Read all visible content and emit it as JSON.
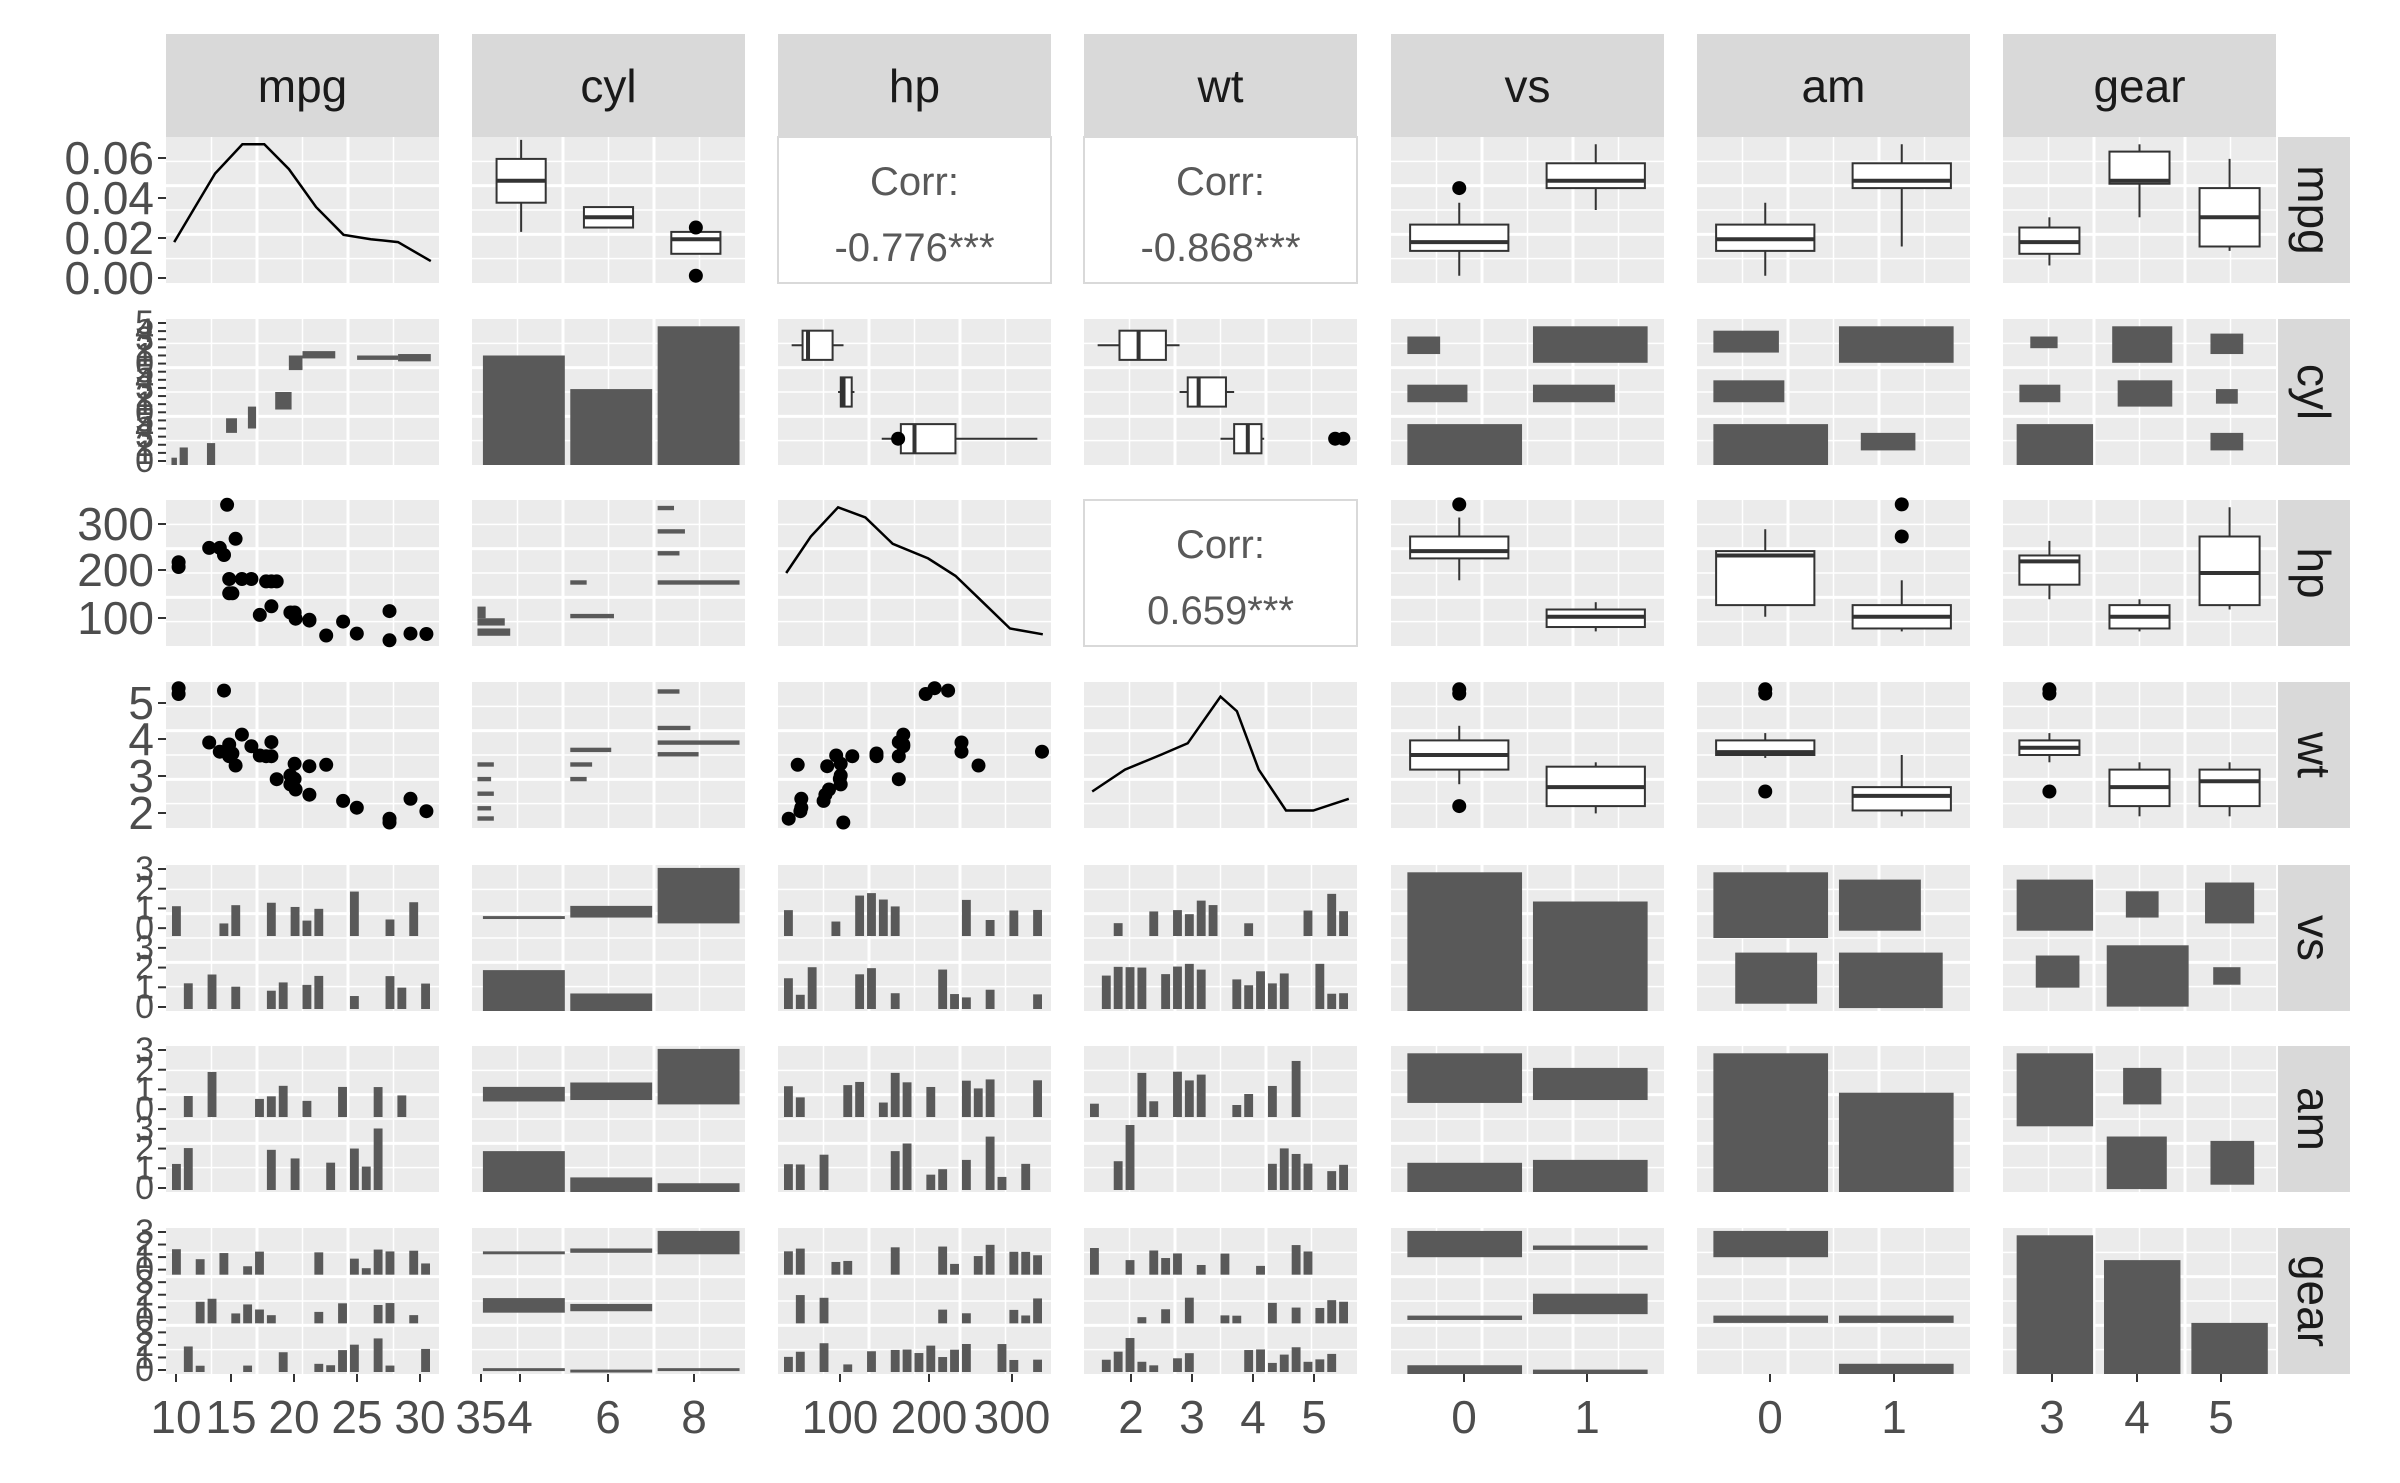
{
  "chart_data": {
    "type": "scatterplot-matrix",
    "variables": [
      "mpg",
      "cyl",
      "hp",
      "wt",
      "vs",
      "am",
      "gear"
    ],
    "strip_labels": {
      "top": [
        "mpg",
        "cyl",
        "hp",
        "wt",
        "vs",
        "am",
        "gear"
      ],
      "right": [
        "mpg",
        "cyl",
        "hp",
        "wt",
        "vs",
        "am",
        "gear"
      ]
    },
    "axis_ticks": {
      "x": [
        [
          "10",
          "15",
          "20",
          "25",
          "30",
          "35"
        ],
        [
          "4",
          "6",
          "8"
        ],
        [
          "100",
          "200",
          "300"
        ],
        [
          "2",
          "3",
          "4",
          "5"
        ],
        [
          "0",
          "1"
        ],
        [
          "0",
          "1"
        ],
        [
          "3",
          "4",
          "5"
        ]
      ],
      "y": [
        [
          "0.06",
          "0.04",
          "0.02",
          "0.00"
        ],
        [
          "5",
          "4",
          "3",
          "2",
          "1",
          "0",
          "5",
          "4",
          "3",
          "2",
          "1",
          "0",
          "5",
          "4",
          "3",
          "2",
          "1",
          "0"
        ],
        [
          "300",
          "200",
          "100"
        ],
        [
          "5",
          "4",
          "3",
          "2"
        ],
        [
          "3",
          "2",
          "1",
          "0",
          "3",
          "2",
          "1",
          "0"
        ],
        [
          "3",
          "2",
          "1",
          "0",
          "3",
          "2",
          "1",
          "0"
        ],
        [
          "3",
          "2",
          "1",
          "0",
          "3",
          "2",
          "1",
          "0",
          "3",
          "2",
          "1",
          "0"
        ]
      ]
    },
    "correlations": [
      {
        "row": "mpg",
        "col": "hp",
        "label": "Corr:",
        "value": "-0.776***"
      },
      {
        "row": "mpg",
        "col": "wt",
        "label": "Corr:",
        "value": "-0.868***"
      },
      {
        "row": "hp",
        "col": "wt",
        "label": "Corr:",
        "value": "0.659***"
      }
    ],
    "scatter": {
      "hp_vs_mpg": [
        [
          10.4,
          205
        ],
        [
          10.4,
          215
        ],
        [
          13.3,
          245
        ],
        [
          14.3,
          245
        ],
        [
          14.7,
          230
        ],
        [
          15.0,
          335
        ],
        [
          15.2,
          150
        ],
        [
          15.2,
          180
        ],
        [
          15.5,
          150
        ],
        [
          15.8,
          264
        ],
        [
          16.4,
          180
        ],
        [
          17.3,
          180
        ],
        [
          18.1,
          105
        ],
        [
          18.7,
          175
        ],
        [
          19.2,
          123
        ],
        [
          19.2,
          175
        ],
        [
          19.7,
          175
        ],
        [
          21.0,
          110
        ],
        [
          21.4,
          110
        ],
        [
          21.4,
          109
        ],
        [
          21.5,
          97
        ],
        [
          22.8,
          93
        ],
        [
          22.8,
          95
        ],
        [
          24.4,
          62
        ],
        [
          26.0,
          91
        ],
        [
          27.3,
          66
        ],
        [
          30.4,
          52
        ],
        [
          30.4,
          113
        ],
        [
          32.4,
          66
        ],
        [
          33.9,
          65
        ]
      ],
      "wt_vs_mpg": [
        [
          10.4,
          5.25
        ],
        [
          10.4,
          5.42
        ],
        [
          13.3,
          3.84
        ],
        [
          14.3,
          3.57
        ],
        [
          14.7,
          5.35
        ],
        [
          15.0,
          3.57
        ],
        [
          15.2,
          3.78
        ],
        [
          15.2,
          3.44
        ],
        [
          15.5,
          3.52
        ],
        [
          15.8,
          3.17
        ],
        [
          16.4,
          4.07
        ],
        [
          17.3,
          3.73
        ],
        [
          18.1,
          3.46
        ],
        [
          18.7,
          3.44
        ],
        [
          19.2,
          3.44
        ],
        [
          19.2,
          3.85
        ],
        [
          19.7,
          2.77
        ],
        [
          21.0,
          2.62
        ],
        [
          21.0,
          2.88
        ],
        [
          21.4,
          3.22
        ],
        [
          21.4,
          2.78
        ],
        [
          21.5,
          2.47
        ],
        [
          22.8,
          2.32
        ],
        [
          22.8,
          3.15
        ],
        [
          24.4,
          3.19
        ],
        [
          26.0,
          2.14
        ],
        [
          27.3,
          1.94
        ],
        [
          30.4,
          1.62
        ],
        [
          30.4,
          1.51
        ],
        [
          32.4,
          2.2
        ],
        [
          33.9,
          1.84
        ]
      ],
      "wt_vs_hp": [
        [
          52,
          1.62
        ],
        [
          62,
          3.19
        ],
        [
          65,
          1.84
        ],
        [
          66,
          2.2
        ],
        [
          66,
          1.94
        ],
        [
          91,
          2.14
        ],
        [
          93,
          2.32
        ],
        [
          95,
          3.15
        ],
        [
          97,
          2.47
        ],
        [
          105,
          3.46
        ],
        [
          109,
          2.78
        ],
        [
          110,
          2.62
        ],
        [
          110,
          2.88
        ],
        [
          110,
          3.22
        ],
        [
          113,
          1.51
        ],
        [
          123,
          3.44
        ],
        [
          150,
          3.52
        ],
        [
          150,
          3.44
        ],
        [
          175,
          3.44
        ],
        [
          175,
          3.85
        ],
        [
          175,
          2.77
        ],
        [
          180,
          4.07
        ],
        [
          180,
          3.73
        ],
        [
          180,
          3.78
        ],
        [
          205,
          5.25
        ],
        [
          215,
          5.42
        ],
        [
          230,
          5.35
        ],
        [
          245,
          3.84
        ],
        [
          245,
          3.57
        ],
        [
          264,
          3.17
        ],
        [
          335,
          3.57
        ]
      ]
    }
  }
}
